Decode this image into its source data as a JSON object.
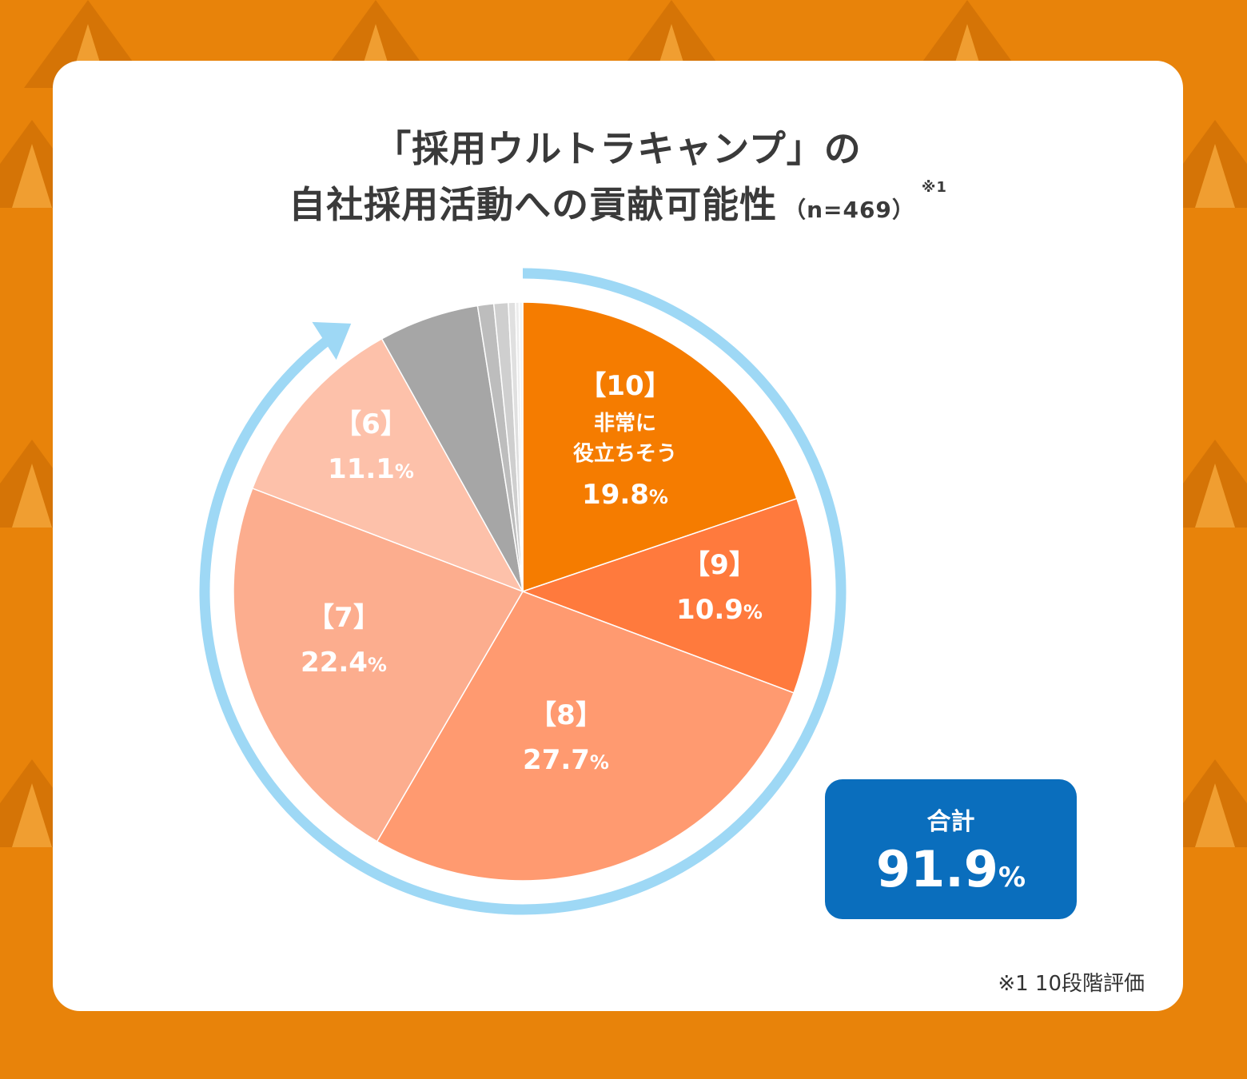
{
  "title": {
    "line1": "「採用ウルトラキャンプ」の",
    "line2": "自社採用活動への貢献可能性",
    "sample": "（n=469）",
    "note_mark": "※1"
  },
  "chart_data": {
    "type": "pie",
    "start": "top",
    "direction": "clockwise",
    "slices": [
      {
        "label": "【10】",
        "sublabel": "非常に\n役立ちそう",
        "value": 19.8,
        "display": "19.8",
        "color": "#F57C00"
      },
      {
        "label": "【9】",
        "value": 10.9,
        "display": "10.9",
        "color": "#FF7A3D"
      },
      {
        "label": "【8】",
        "value": 27.7,
        "display": "27.7",
        "color": "#FF9A70"
      },
      {
        "label": "【7】",
        "value": 22.4,
        "display": "22.4",
        "color": "#FCAD8E"
      },
      {
        "label": "【6】",
        "value": 11.1,
        "display": "11.1",
        "color": "#FDC1AA"
      },
      {
        "label": "",
        "value": 5.6,
        "color": "#A6A6A6"
      },
      {
        "label": "",
        "value": 0.9,
        "color": "#BDBDBD"
      },
      {
        "label": "",
        "value": 0.8,
        "color": "#CFCFCF"
      },
      {
        "label": "",
        "value": 0.4,
        "color": "#E0E0E0"
      },
      {
        "label": "",
        "value": 0.2,
        "color": "#EDEDED"
      },
      {
        "label": "",
        "value": 0.2,
        "color": "#F4F4F4"
      }
    ],
    "percent_sign": "%",
    "arrow_color": "#9ED8F5"
  },
  "total": {
    "label": "合計",
    "value": "91.9",
    "unit": "%"
  },
  "footnote": "※1  10段階評価",
  "colors": {
    "background": "#E8830A",
    "card": "#FFFFFF",
    "total_box": "#0A6EBD",
    "title_text": "#3A3A3A"
  }
}
